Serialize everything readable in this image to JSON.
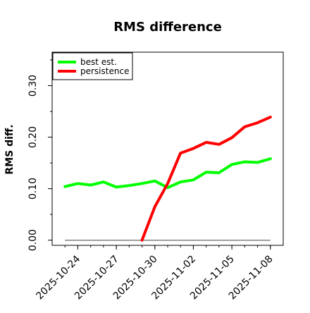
{
  "chart_data": {
    "type": "line",
    "title": "RMS difference",
    "xlabel": "",
    "ylabel": "RMS diff.",
    "x_ticks": [
      "2025-10-24",
      "2025-10-27",
      "2025-10-30",
      "2025-11-02",
      "2025-11-05",
      "2025-11-08"
    ],
    "y_ticks": [
      "0.00",
      "0.10",
      "0.20",
      "0.30"
    ],
    "ylim": [
      -0.01,
      0.365
    ],
    "xlim": [
      "2025-10-22",
      "2025-11-09"
    ],
    "grid": false,
    "legend": "top-left",
    "reference_line": {
      "y": 0.0,
      "color": "#808080"
    },
    "series": [
      {
        "name": "best est.",
        "color": "#00ff00",
        "points": [
          {
            "x": "2025-10-23",
            "y": 0.104
          },
          {
            "x": "2025-10-24",
            "y": 0.11
          },
          {
            "x": "2025-10-25",
            "y": 0.107
          },
          {
            "x": "2025-10-26",
            "y": 0.113
          },
          {
            "x": "2025-10-27",
            "y": 0.103
          },
          {
            "x": "2025-10-28",
            "y": 0.106
          },
          {
            "x": "2025-10-29",
            "y": 0.11
          },
          {
            "x": "2025-10-30",
            "y": 0.115
          },
          {
            "x": "2025-10-31",
            "y": 0.102
          },
          {
            "x": "2025-11-01",
            "y": 0.113
          },
          {
            "x": "2025-11-02",
            "y": 0.117
          },
          {
            "x": "2025-11-03",
            "y": 0.132
          },
          {
            "x": "2025-11-04",
            "y": 0.131
          },
          {
            "x": "2025-11-05",
            "y": 0.147
          },
          {
            "x": "2025-11-06",
            "y": 0.152
          },
          {
            "x": "2025-11-07",
            "y": 0.151
          },
          {
            "x": "2025-11-08",
            "y": 0.158
          }
        ]
      },
      {
        "name": "persistence",
        "color": "#ff0000",
        "points": [
          {
            "x": "2025-10-29",
            "y": 0.0
          },
          {
            "x": "2025-10-30",
            "y": 0.065
          },
          {
            "x": "2025-10-31",
            "y": 0.11
          },
          {
            "x": "2025-11-01",
            "y": 0.169
          },
          {
            "x": "2025-11-02",
            "y": 0.178
          },
          {
            "x": "2025-11-03",
            "y": 0.19
          },
          {
            "x": "2025-11-04",
            "y": 0.186
          },
          {
            "x": "2025-11-05",
            "y": 0.199
          },
          {
            "x": "2025-11-06",
            "y": 0.22
          },
          {
            "x": "2025-11-07",
            "y": 0.228
          },
          {
            "x": "2025-11-08",
            "y": 0.239
          }
        ]
      }
    ]
  }
}
